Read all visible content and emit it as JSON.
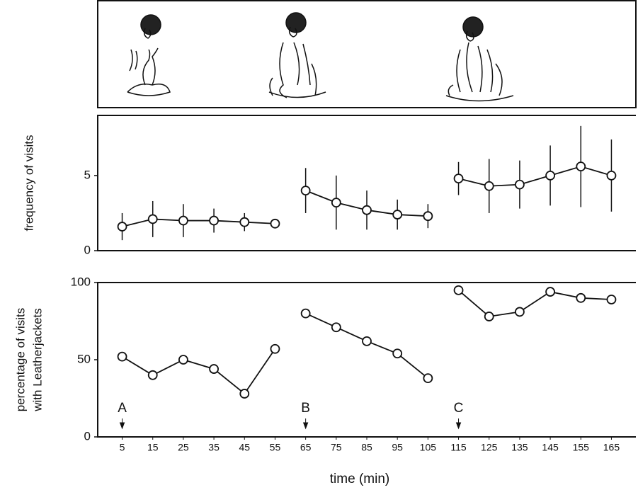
{
  "chart_data": [
    {
      "type": "line",
      "ylabel": "frequency of visits",
      "xlim": [
        -3,
        173
      ],
      "ylim": [
        0,
        9
      ],
      "yticks": [
        0,
        5
      ],
      "series": [
        {
          "color": "#111111",
          "x": [
            5,
            15,
            25,
            35,
            45,
            55
          ],
          "values": [
            1.6,
            2.1,
            2.0,
            2.0,
            1.9,
            1.8
          ],
          "errors": [
            0.9,
            1.2,
            1.1,
            0.8,
            0.6,
            0.3
          ]
        },
        {
          "color": "#111111",
          "x": [
            65,
            75,
            85,
            95,
            105
          ],
          "values": [
            4.0,
            3.2,
            2.7,
            2.4,
            2.3
          ],
          "errors": [
            1.5,
            1.8,
            1.3,
            1.0,
            0.8
          ]
        },
        {
          "color": "#111111",
          "x": [
            115,
            125,
            135,
            145,
            155,
            165
          ],
          "values": [
            4.8,
            4.3,
            4.4,
            5.0,
            5.6,
            5.0
          ],
          "errors": [
            1.1,
            1.8,
            1.6,
            2.0,
            2.7,
            2.4
          ]
        }
      ]
    },
    {
      "type": "line",
      "ylabel": [
        "percentage of visits",
        "with Leatherjackets"
      ],
      "xlabel": "time (min)",
      "xlim": [
        -3,
        173
      ],
      "ylim": [
        0,
        100
      ],
      "yticks": [
        0,
        50,
        100
      ],
      "xticks": [
        5,
        15,
        25,
        35,
        45,
        55,
        65,
        75,
        85,
        95,
        105,
        115,
        125,
        135,
        145,
        155,
        165
      ],
      "annotations": [
        {
          "text": "A",
          "x": 5
        },
        {
          "text": "B",
          "x": 65
        },
        {
          "text": "C",
          "x": 115
        }
      ],
      "series": [
        {
          "color": "#111111",
          "x": [
            5,
            15,
            25,
            35,
            45,
            55
          ],
          "values": [
            52,
            40,
            50,
            44,
            28,
            57
          ]
        },
        {
          "color": "#111111",
          "x": [
            65,
            75,
            85,
            95,
            105
          ],
          "values": [
            80,
            71,
            62,
            54,
            38
          ]
        },
        {
          "color": "#111111",
          "x": [
            115,
            125,
            135,
            145,
            155,
            165
          ],
          "values": [
            95,
            78,
            81,
            94,
            90,
            89
          ]
        }
      ]
    }
  ]
}
